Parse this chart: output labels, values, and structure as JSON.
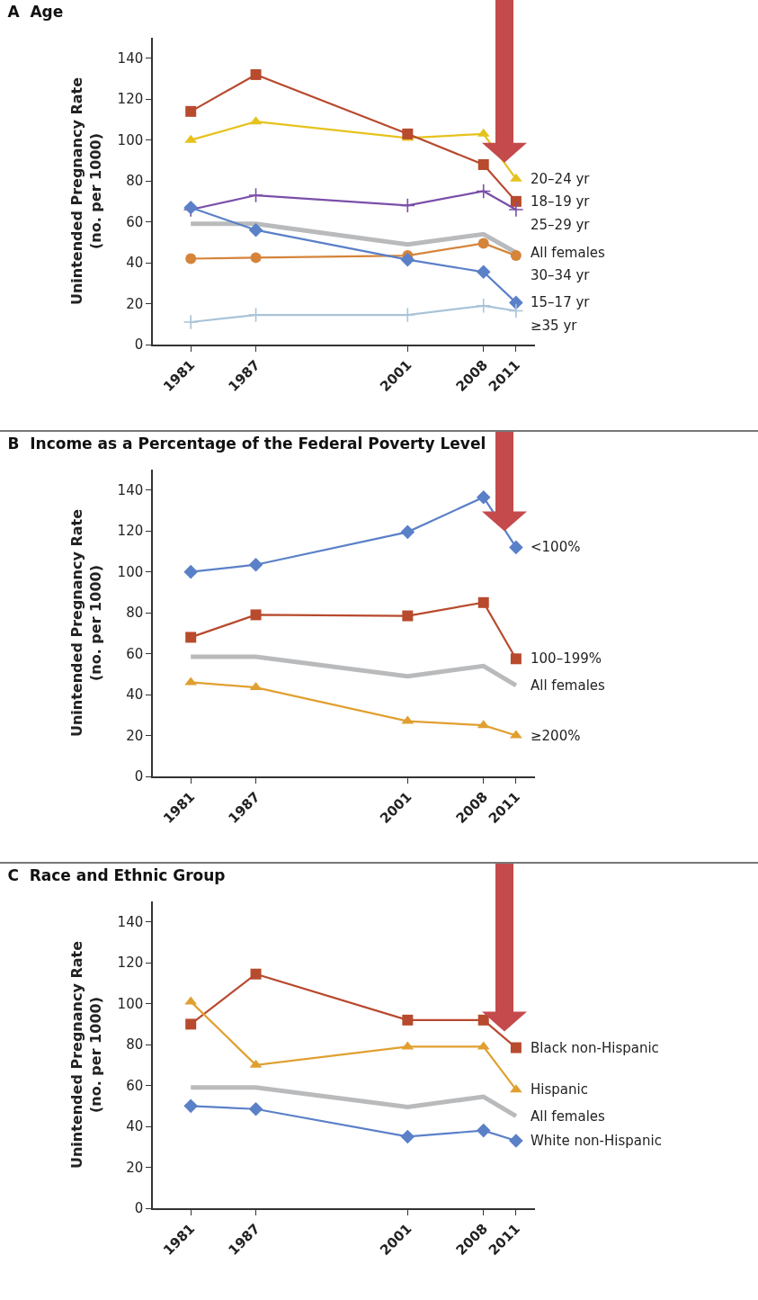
{
  "chart_data": [
    {
      "type": "line",
      "title": "A  Age",
      "ylabel": "Unintended Pregnancy Rate\n(no. per 1000)",
      "x": [
        1981,
        1987,
        2001,
        2008,
        2011
      ],
      "xlim": [
        1977.5,
        2012.75
      ],
      "xticks": [
        1981,
        1987,
        2001,
        2008,
        2011
      ],
      "ylim": [
        0,
        150
      ],
      "yticks": [
        0,
        20,
        40,
        60,
        80,
        100,
        120,
        140
      ],
      "grid": false,
      "legend": false,
      "series": [
        {
          "name": "20–24 yr",
          "color": "#e6c21c",
          "marker": "triangle",
          "values": [
            100,
            109,
            101,
            103,
            81
          ]
        },
        {
          "name": "18–19 yr",
          "color": "#b84a2e",
          "marker": "square",
          "values": [
            114,
            132,
            103,
            88,
            70
          ]
        },
        {
          "name": "25–29 yr",
          "color": "#7a4fa8",
          "marker": "cross",
          "values": [
            66,
            73,
            68,
            75,
            66
          ]
        },
        {
          "name": "All females",
          "color": "#b9babc",
          "marker": "none",
          "values": [
            59,
            59,
            49,
            54,
            45
          ]
        },
        {
          "name": "30–34 yr",
          "color": "#d5843a",
          "marker": "circle",
          "values": [
            42,
            42.5,
            43.5,
            49.5,
            43.5
          ]
        },
        {
          "name": "15–17 yr",
          "color": "#5a80c8",
          "marker": "diamond",
          "values": [
            67,
            56,
            41.5,
            35.5,
            20.5
          ]
        },
        {
          "name": "≥35 yr",
          "color": "#a9c4d8",
          "marker": "cross",
          "values": [
            11,
            14.5,
            14.5,
            19,
            16.5
          ]
        }
      ]
    },
    {
      "type": "line",
      "title": "B  Income as a Percentage of the Federal Poverty Level",
      "ylabel": "Unintended Pregnancy Rate\n(no. per 1000)",
      "x": [
        1981,
        1987,
        2001,
        2008,
        2011
      ],
      "xlim": [
        1977.5,
        2012.75
      ],
      "xticks": [
        1981,
        1987,
        2001,
        2008,
        2011
      ],
      "ylim": [
        0,
        150
      ],
      "yticks": [
        0,
        20,
        40,
        60,
        80,
        100,
        120,
        140
      ],
      "grid": false,
      "legend": false,
      "series": [
        {
          "name": "<100%",
          "color": "#5a80c8",
          "marker": "diamond",
          "values": [
            100,
            103.5,
            119.5,
            136.5,
            112
          ]
        },
        {
          "name": "100–199%",
          "color": "#b84a2e",
          "marker": "square",
          "values": [
            68,
            79,
            78.5,
            85,
            57.5
          ]
        },
        {
          "name": "All females",
          "color": "#b9babc",
          "marker": "none",
          "values": [
            58.5,
            58.5,
            49,
            54,
            44.5
          ]
        },
        {
          "name": "≥200%",
          "color": "#e0a030",
          "marker": "triangle",
          "values": [
            46,
            43.5,
            27,
            25,
            20
          ]
        }
      ]
    },
    {
      "type": "line",
      "title": "C  Race and Ethnic Group",
      "ylabel": "Unintended Pregnancy Rate\n(no. per 1000)",
      "x": [
        1981,
        1987,
        2001,
        2008,
        2011
      ],
      "xlim": [
        1977.5,
        2012.75
      ],
      "xticks": [
        1981,
        1987,
        2001,
        2008,
        2011
      ],
      "ylim": [
        0,
        150
      ],
      "yticks": [
        0,
        20,
        40,
        60,
        80,
        100,
        120,
        140
      ],
      "grid": false,
      "legend": false,
      "series": [
        {
          "name": "Black non-Hispanic",
          "color": "#b84a2e",
          "marker": "square",
          "values": [
            90,
            114.5,
            92,
            92,
            78.5
          ]
        },
        {
          "name": "Hispanic",
          "color": "#e0a030",
          "marker": "triangle",
          "values": [
            101,
            70,
            79,
            79,
            58
          ]
        },
        {
          "name": "All females",
          "color": "#b9babc",
          "marker": "none",
          "values": [
            59,
            59,
            49.5,
            54.5,
            45
          ]
        },
        {
          "name": "White non-Hispanic",
          "color": "#5a80c8",
          "marker": "diamond",
          "values": [
            50,
            48.5,
            35,
            38,
            33
          ]
        }
      ]
    }
  ]
}
